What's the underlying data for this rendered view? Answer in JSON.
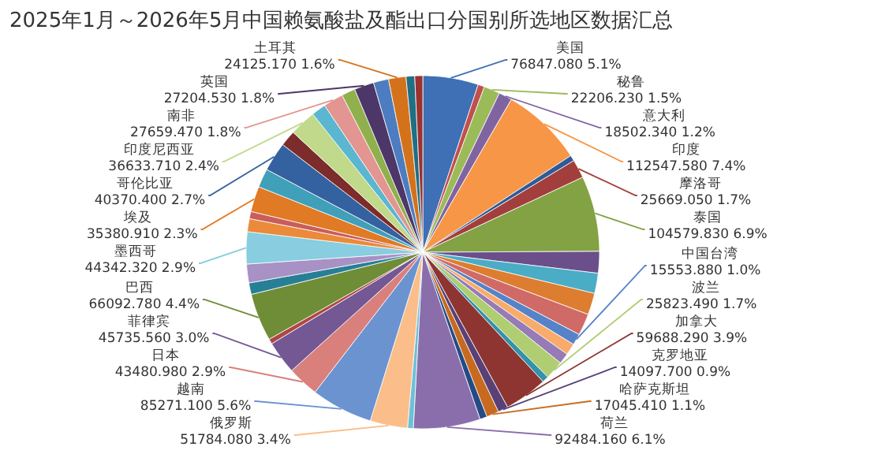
{
  "chart_data": {
    "type": "pie",
    "title": "2025年1月～2026年5月中国赖氨酸盐及酯出口分国别所选地区数据汇总",
    "categories": [
      "美国",
      null,
      "秘鲁",
      "意大利",
      "印度",
      null,
      "摩洛哥",
      "泰国",
      null,
      null,
      null,
      null,
      "中国台湾",
      null,
      null,
      "波兰",
      null,
      "加拿大",
      "克罗地亚",
      "哈萨克斯坦",
      null,
      "荷兰",
      null,
      "俄罗斯",
      "越南",
      "日本",
      "菲律宾",
      null,
      "巴西",
      null,
      null,
      "墨西哥",
      null,
      null,
      "埃及",
      null,
      "哥伦比亚",
      null,
      "印度尼西亚",
      null,
      "南非",
      null,
      "英国",
      null,
      "土耳其",
      null,
      null
    ],
    "values": [
      76847.08,
      9000,
      22206.23,
      18502.34,
      112547.58,
      8000,
      25669.05,
      104579.83,
      30000,
      28000,
      30000,
      30000,
      15553.88,
      16000,
      15000,
      25823.49,
      9000,
      59688.29,
      14097.7,
      17045.41,
      10000,
      92484.16,
      8000,
      51784.08,
      85271.1,
      43480.98,
      45735.56,
      7000,
      66092.78,
      16000,
      26000,
      44342.32,
      18000,
      10000,
      35380.91,
      26000,
      40370.4,
      22000,
      36633.71,
      20000,
      27659.47,
      19000,
      27204.53,
      21000,
      24125.17,
      12000,
      11000
    ],
    "value_labels": [
      "76847.080 5.1%",
      null,
      "22206.230 1.5%",
      "18502.340 1.2%",
      "112547.580 7.4%",
      null,
      "25669.050 1.7%",
      "104579.830 6.9%",
      null,
      null,
      null,
      null,
      "15553.880 1.0%",
      null,
      null,
      "25823.490 1.7%",
      null,
      "59688.290 3.9%",
      "14097.700 0.9%",
      "17045.410 1.1%",
      null,
      "92484.160 6.1%",
      null,
      "51784.080 3.4%",
      "85271.100 5.6%",
      "43480.980 2.9%",
      "45735.560 3.0%",
      null,
      "66092.780 4.4%",
      null,
      null,
      "44342.320 2.9%",
      null,
      null,
      "35380.910 2.3%",
      null,
      "40370.400 2.7%",
      null,
      "36633.710 2.4%",
      null,
      "27659.470 1.8%",
      null,
      "27204.530 1.8%",
      null,
      "24125.170 1.6%",
      null,
      null
    ],
    "colors": [
      "#3f6fb5",
      "#c0504d",
      "#9bbb59",
      "#8064a2",
      "#f79646",
      "#2f5a9a",
      "#a23f3c",
      "#82a244",
      "#6a4f8a",
      "#4bacc6",
      "#dd7d2f",
      "#d06a67",
      "#5683c8",
      "#f9ab6b",
      "#967bb6",
      "#b0cd72",
      "#3592ab",
      "#8e3532",
      "#594178",
      "#c76a1f",
      "#254b85",
      "#8a6eac",
      "#6ec0d6",
      "#fbbd89",
      "#6a93d0",
      "#d9807d",
      "#735894",
      "#b04744",
      "#6f8c37",
      "#277f96",
      "#a891c4",
      "#88cde0",
      "#ea8a3a",
      "#c95d5a",
      "#e07a25",
      "#409fb9",
      "#34619f",
      "#7c2c2a",
      "#c0d98a",
      "#5bb6cf",
      "#e39592",
      "#8fb04d",
      "#4d3668",
      "#4d7dc0",
      "#d4721c",
      "#1f6f85",
      "#9a3230"
    ]
  }
}
